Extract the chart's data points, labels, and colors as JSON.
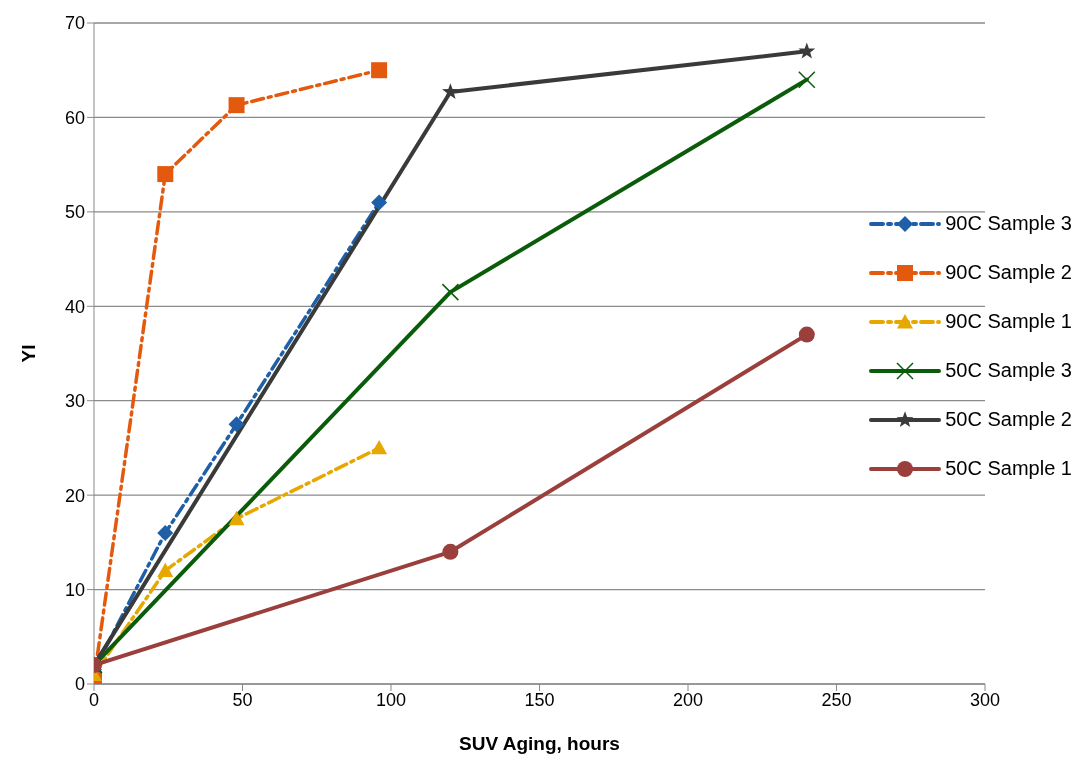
{
  "chart_data": {
    "type": "line",
    "xlabel": "SUV Aging, hours",
    "ylabel": "YI",
    "xlim": [
      0,
      300
    ],
    "xticks": [
      0,
      50,
      100,
      150,
      200,
      250,
      300
    ],
    "ylim": [
      0,
      70
    ],
    "yticks": [
      0,
      10,
      20,
      30,
      40,
      50,
      60,
      70
    ],
    "grid": "y",
    "legend": "right",
    "series": [
      {
        "name": "90C Sample 3",
        "color": "#1f5fa8",
        "marker": "diamond",
        "line_style": "dashed",
        "x": [
          0,
          24,
          48,
          96
        ],
        "values": [
          1.5,
          16,
          27.5,
          51
        ]
      },
      {
        "name": "90C Sample 2",
        "color": "#e35a0e",
        "marker": "square",
        "line_style": "dashed",
        "x": [
          0,
          24,
          48,
          96
        ],
        "values": [
          0.5,
          54,
          61.3,
          65
        ]
      },
      {
        "name": "90C Sample 1",
        "color": "#e6a800",
        "marker": "triangle",
        "line_style": "dashed",
        "x": [
          0,
          24,
          48,
          96
        ],
        "values": [
          1,
          12,
          17.5,
          25
        ]
      },
      {
        "name": "50C Sample 3",
        "color": "#0a5c0a",
        "marker": "cross",
        "line_style": "solid",
        "x": [
          0,
          120,
          240
        ],
        "values": [
          2,
          41.5,
          64
        ]
      },
      {
        "name": "50C Sample 2",
        "color": "#3a3a3a",
        "marker": "star",
        "line_style": "solid",
        "x": [
          0,
          120,
          240
        ],
        "values": [
          2,
          62.7,
          67
        ]
      },
      {
        "name": "50C Sample 1",
        "color": "#9a3f3c",
        "marker": "circle",
        "line_style": "solid",
        "x": [
          0,
          120,
          240
        ],
        "values": [
          2,
          14,
          37
        ]
      }
    ]
  }
}
